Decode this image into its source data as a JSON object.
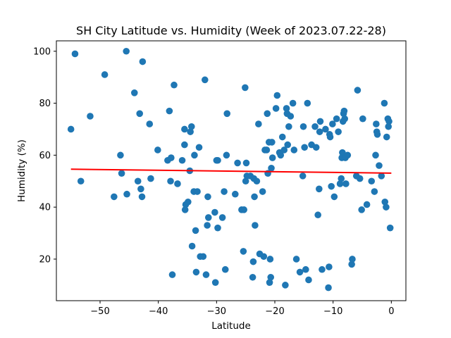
{
  "chart_data": {
    "type": "scatter",
    "title": "SH City Latitude vs. Humidity (Week of 2023.07.22-28)",
    "xlabel": "Latitude",
    "ylabel": "Humidity (%)",
    "xlim": [
      -57.5,
      2.5
    ],
    "ylim": [
      4,
      104
    ],
    "xticks": [
      -50,
      -40,
      -30,
      -20,
      -10,
      0
    ],
    "yticks": [
      20,
      40,
      60,
      80,
      100
    ],
    "grid": false,
    "marker_color": "#1f77b4",
    "regression": {
      "x": [
        -55,
        0
      ],
      "y": [
        54.6,
        53.1
      ],
      "color": "#ff0000"
    },
    "points": [
      [
        -55.0,
        70
      ],
      [
        -54.3,
        99
      ],
      [
        -53.3,
        50
      ],
      [
        -51.7,
        75
      ],
      [
        -49.2,
        91
      ],
      [
        -47.6,
        44
      ],
      [
        -46.5,
        60
      ],
      [
        -46.3,
        53
      ],
      [
        -45.5,
        100
      ],
      [
        -45.4,
        45
      ],
      [
        -44.1,
        84
      ],
      [
        -43.5,
        50
      ],
      [
        -43.2,
        76
      ],
      [
        -43.0,
        47
      ],
      [
        -42.8,
        44
      ],
      [
        -42.7,
        96
      ],
      [
        -41.5,
        72
      ],
      [
        -41.3,
        51
      ],
      [
        -40.1,
        62
      ],
      [
        -38.4,
        58
      ],
      [
        -38.1,
        77
      ],
      [
        -37.9,
        50
      ],
      [
        -37.8,
        59
      ],
      [
        -37.6,
        14
      ],
      [
        -37.3,
        87
      ],
      [
        -36.7,
        49
      ],
      [
        -35.9,
        58
      ],
      [
        -35.5,
        64
      ],
      [
        -35.5,
        70
      ],
      [
        -35.4,
        39
      ],
      [
        -35.3,
        41
      ],
      [
        -34.9,
        42
      ],
      [
        -34.6,
        54
      ],
      [
        -34.5,
        69
      ],
      [
        -34.3,
        71
      ],
      [
        -34.2,
        25
      ],
      [
        -33.9,
        46
      ],
      [
        -33.8,
        60
      ],
      [
        -33.6,
        31
      ],
      [
        -33.5,
        15
      ],
      [
        -33.3,
        46
      ],
      [
        -33.0,
        63
      ],
      [
        -32.8,
        21
      ],
      [
        -32.3,
        21
      ],
      [
        -32.0,
        89
      ],
      [
        -31.8,
        14
      ],
      [
        -31.6,
        33
      ],
      [
        -31.5,
        44
      ],
      [
        -31.4,
        36
      ],
      [
        -30.3,
        38
      ],
      [
        -30.2,
        11
      ],
      [
        -30.0,
        58
      ],
      [
        -29.8,
        32
      ],
      [
        -29.8,
        58
      ],
      [
        -29.0,
        36
      ],
      [
        -28.7,
        46
      ],
      [
        -28.5,
        16
      ],
      [
        -28.3,
        60
      ],
      [
        -28.2,
        76
      ],
      [
        -26.8,
        45
      ],
      [
        -26.4,
        57
      ],
      [
        -25.7,
        39
      ],
      [
        -25.4,
        23
      ],
      [
        -25.3,
        39
      ],
      [
        -25.1,
        86
      ],
      [
        -25.0,
        50
      ],
      [
        -24.9,
        57
      ],
      [
        -24.8,
        52
      ],
      [
        -24.2,
        52
      ],
      [
        -23.8,
        13
      ],
      [
        -23.7,
        19
      ],
      [
        -23.6,
        51
      ],
      [
        -23.5,
        44
      ],
      [
        -23.4,
        33
      ],
      [
        -23.1,
        50
      ],
      [
        -22.8,
        72
      ],
      [
        -22.6,
        22
      ],
      [
        -22.1,
        46
      ],
      [
        -21.9,
        21
      ],
      [
        -21.7,
        62
      ],
      [
        -21.4,
        62
      ],
      [
        -21.3,
        76
      ],
      [
        -21.2,
        53
      ],
      [
        -21.0,
        65
      ],
      [
        -20.9,
        11
      ],
      [
        -20.8,
        20
      ],
      [
        -20.7,
        13
      ],
      [
        -20.6,
        55
      ],
      [
        -20.5,
        65
      ],
      [
        -20.4,
        59
      ],
      [
        -19.8,
        78
      ],
      [
        -19.6,
        83
      ],
      [
        -19.2,
        61
      ],
      [
        -19.0,
        60
      ],
      [
        -18.7,
        67
      ],
      [
        -18.4,
        62
      ],
      [
        -18.2,
        10
      ],
      [
        -18.0,
        78
      ],
      [
        -17.9,
        76
      ],
      [
        -17.8,
        64
      ],
      [
        -17.6,
        71
      ],
      [
        -17.3,
        75
      ],
      [
        -16.9,
        80
      ],
      [
        -16.7,
        62
      ],
      [
        -16.3,
        20
      ],
      [
        -15.7,
        15
      ],
      [
        -15.2,
        52
      ],
      [
        -15.1,
        71
      ],
      [
        -14.9,
        63
      ],
      [
        -14.7,
        16
      ],
      [
        -14.4,
        80
      ],
      [
        -14.2,
        12
      ],
      [
        -13.7,
        64
      ],
      [
        -13.1,
        71
      ],
      [
        -12.9,
        63
      ],
      [
        -12.6,
        37
      ],
      [
        -12.4,
        47
      ],
      [
        -12.3,
        69
      ],
      [
        -12.2,
        73
      ],
      [
        -11.9,
        16
      ],
      [
        -11.3,
        70
      ],
      [
        -10.8,
        9
      ],
      [
        -10.7,
        17
      ],
      [
        -10.6,
        68
      ],
      [
        -10.5,
        67
      ],
      [
        -10.3,
        48
      ],
      [
        -10.1,
        72
      ],
      [
        -9.8,
        44
      ],
      [
        -9.4,
        74
      ],
      [
        -9.1,
        69
      ],
      [
        -8.8,
        49
      ],
      [
        -8.6,
        51
      ],
      [
        -8.5,
        59
      ],
      [
        -8.4,
        61
      ],
      [
        -8.3,
        73
      ],
      [
        -8.2,
        76
      ],
      [
        -8.1,
        77
      ],
      [
        -8.0,
        74
      ],
      [
        -7.9,
        59
      ],
      [
        -7.8,
        49
      ],
      [
        -7.5,
        60
      ],
      [
        -6.8,
        18
      ],
      [
        -6.7,
        20
      ],
      [
        -6.0,
        52
      ],
      [
        -5.8,
        85
      ],
      [
        -5.4,
        51
      ],
      [
        -5.1,
        39
      ],
      [
        -4.9,
        74
      ],
      [
        -4.2,
        41
      ],
      [
        -3.4,
        50
      ],
      [
        -2.9,
        46
      ],
      [
        -2.7,
        60
      ],
      [
        -2.6,
        72
      ],
      [
        -2.5,
        69
      ],
      [
        -2.4,
        68
      ],
      [
        -2.1,
        56
      ],
      [
        -1.7,
        52
      ],
      [
        -1.2,
        80
      ],
      [
        -1.1,
        42
      ],
      [
        -0.9,
        40
      ],
      [
        -0.8,
        67
      ],
      [
        -0.6,
        74
      ],
      [
        -0.5,
        71
      ],
      [
        -0.4,
        73
      ],
      [
        -0.2,
        32
      ]
    ]
  }
}
